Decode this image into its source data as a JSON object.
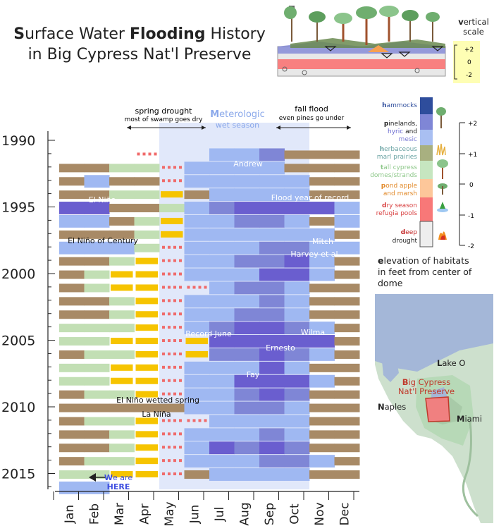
{
  "title": {
    "line1_parts": [
      {
        "text": "S",
        "bold": true
      },
      {
        "text": "urface Water ",
        "bold": false
      },
      {
        "text": "Flooding",
        "bold": true
      },
      {
        "text": " History",
        "bold": false
      }
    ],
    "line2": "in Big Cypress Nat'l Preserve"
  },
  "vertical_scale": {
    "label_bold": "v",
    "label_rest": "ertical",
    "label_line2": "scale",
    "ticks": [
      "+2",
      "0",
      "-2"
    ]
  },
  "annotations": {
    "spring_drought": {
      "title": "spring drought",
      "sub": "most of swamp goes dry"
    },
    "wet_season": {
      "title_bold": "M",
      "title_rest": "eterologic",
      "sub": "wet season"
    },
    "fall_flood": {
      "title": "fall flood",
      "sub": "even pines go under"
    },
    "events": [
      "Andrew",
      "El Niño",
      "Flood year of record",
      "El Niño of Century",
      "Mitch",
      "Harvey et al",
      "Record June",
      "Wilma",
      "Ernesto",
      "Fay",
      "El Niño wetted spring",
      "La Niña"
    ],
    "here_bold": "W",
    "here_rest": "e are",
    "here_line2": "HERE"
  },
  "legend": {
    "categories": [
      {
        "bold": "h",
        "rest": "ammocks",
        "color": "#2e4d9c"
      },
      {
        "bold": "p",
        "rest": "inelands,",
        "color": "#222222"
      },
      {
        "bold": "",
        "rest": "hyric",
        "color": "#6a6ad0"
      },
      {
        "bold": "",
        "rest": "and",
        "color": "#222222"
      },
      {
        "bold": "",
        "rest": "mesic",
        "color": "#7f7fd6"
      },
      {
        "bold": "h",
        "rest": "erbaceous",
        "color": "#6aa3a3"
      },
      {
        "bold": "",
        "rest": "marl prairies",
        "color": "#6aa3a3"
      },
      {
        "bold": "t",
        "rest": "all cypress",
        "color": "#8ec88a"
      },
      {
        "bold": "",
        "rest": "domes/strands",
        "color": "#8ec88a"
      },
      {
        "bold": "p",
        "rest": "ond apple",
        "color": "#e28a2a"
      },
      {
        "bold": "",
        "rest": "and marsh",
        "color": "#e28a2a"
      },
      {
        "bold": "d",
        "rest": "ry season",
        "color": "#d84040"
      },
      {
        "bold": "",
        "rest": "refugia pools",
        "color": "#d84040"
      },
      {
        "bold": "d",
        "rest": "eep",
        "color": "#c02020"
      },
      {
        "bold": "",
        "rest": "drought",
        "color": "#222222"
      }
    ],
    "swatch_colors": [
      "#2e4d9c",
      "#7f86d6",
      "#a9bff2",
      "#a8b080",
      "#c6e6c0",
      "#fdc79a",
      "#f87878",
      "#eeeeee"
    ],
    "scale_ticks": [
      "+2",
      "+1",
      "0",
      "-1",
      "-2"
    ]
  },
  "elevation_caption": {
    "bold": "e",
    "rest_line1": "levation of habitats",
    "line2": "in feet from center of",
    "line3": "dome"
  },
  "map_labels": {
    "lake": {
      "bold": "L",
      "rest": "ake O"
    },
    "preserve": {
      "bold": "B",
      "rest": "ig Cypress",
      "line2": "Nat'l Preserve"
    },
    "naples": {
      "bold": "N",
      "rest": "aples"
    },
    "miami": {
      "bold": "M",
      "rest": "iami"
    }
  },
  "colors": {
    "dry_brown": "#a88a66",
    "marl": "#a8b27a",
    "cypress": "#c2dfb4",
    "pond": "#f6c400",
    "pool": "#f06a6a",
    "wet_light": "#9fb8f2",
    "wet_mid": "#7f86d6",
    "wet_deep": "#6a5ecf",
    "band": "#c8d6f6",
    "accent_blue": "#4a5fe0"
  },
  "chart_data": {
    "type": "heatmap",
    "title": "Surface Water Flooding History in Big Cypress Nat'l Preserve",
    "x_categories": [
      "Jan",
      "Feb",
      "Mar",
      "Apr",
      "May",
      "Jun",
      "Jul",
      "Aug",
      "Sep",
      "Oct",
      "Nov",
      "Dec"
    ],
    "y_ticks": [
      "1990",
      "1995",
      "2000",
      "2005",
      "2010",
      "2015"
    ],
    "years": [
      1990,
      1991,
      1992,
      1993,
      1994,
      1995,
      1996,
      1997,
      1998,
      1999,
      2000,
      2001,
      2002,
      2003,
      2004,
      2005,
      2006,
      2007,
      2008,
      2009,
      2010,
      2011,
      2012,
      2013,
      2014,
      2015,
      2016
    ],
    "value_levels": {
      "6": "hammocks (+2 ft)",
      "5": "pinelands hyric/mesic",
      "4": "pinelands",
      "3": "herbaceous marl prairies (+1 ft)",
      "2": "tall cypress domes/strands (0 ft)",
      "1": "pond apple and marsh",
      "0": "dry season refugia pools (-1 ft)",
      "-1": "deep drought (-2 ft)"
    },
    "value_colors": {
      "6": "#6a5ecf",
      "5": "#7f86d6",
      "4": "#9fb8f2",
      "3": "#a88a66",
      "2": "#c2dfb4",
      "1": "#f6c400",
      "0": "#f06a6a",
      "-1": "#ffffff"
    },
    "grid": [
      [
        -1,
        -1,
        -1,
        -1,
        -1,
        -1,
        -1,
        -1,
        -1,
        -1,
        -1,
        -1
      ],
      [
        -1,
        -1,
        -1,
        0,
        -1,
        -1,
        4,
        4,
        5,
        3,
        3,
        3
      ],
      [
        3,
        3,
        2,
        2,
        0,
        4,
        4,
        4,
        4,
        3,
        3,
        3
      ],
      [
        3,
        4,
        3,
        3,
        0,
        4,
        4,
        4,
        4,
        4,
        3,
        3
      ],
      [
        3,
        3,
        2,
        2,
        1,
        3,
        4,
        4,
        4,
        4,
        3,
        3
      ],
      [
        6,
        6,
        3,
        3,
        2,
        4,
        5,
        6,
        6,
        6,
        6,
        4
      ],
      [
        4,
        4,
        3,
        2,
        1,
        4,
        4,
        5,
        5,
        4,
        3,
        4
      ],
      [
        3,
        3,
        3,
        2,
        1,
        4,
        4,
        4,
        4,
        4,
        4,
        3
      ],
      [
        4,
        4,
        4,
        2,
        0,
        4,
        4,
        4,
        5,
        5,
        4,
        4
      ],
      [
        3,
        3,
        2,
        1,
        0,
        4,
        4,
        5,
        5,
        6,
        4,
        3
      ],
      [
        3,
        2,
        1,
        1,
        0,
        4,
        4,
        4,
        6,
        6,
        4,
        3
      ],
      [
        3,
        2,
        1,
        1,
        0,
        0,
        4,
        5,
        5,
        4,
        3,
        3
      ],
      [
        3,
        3,
        2,
        1,
        0,
        4,
        4,
        4,
        5,
        4,
        3,
        3
      ],
      [
        3,
        3,
        2,
        1,
        0,
        4,
        4,
        5,
        5,
        4,
        3,
        3
      ],
      [
        2,
        2,
        2,
        1,
        0,
        4,
        5,
        6,
        6,
        5,
        4,
        3
      ],
      [
        2,
        2,
        1,
        1,
        0,
        1,
        6,
        6,
        6,
        6,
        6,
        3
      ],
      [
        3,
        2,
        2,
        1,
        0,
        1,
        5,
        5,
        6,
        5,
        4,
        3
      ],
      [
        2,
        2,
        1,
        1,
        0,
        4,
        4,
        4,
        6,
        4,
        3,
        3
      ],
      [
        2,
        2,
        1,
        1,
        0,
        4,
        4,
        6,
        6,
        6,
        4,
        3
      ],
      [
        3,
        2,
        2,
        1,
        0,
        4,
        4,
        5,
        6,
        5,
        3,
        3
      ],
      [
        3,
        3,
        3,
        3,
        3,
        4,
        4,
        5,
        5,
        4,
        3,
        3
      ],
      [
        3,
        2,
        2,
        1,
        0,
        0,
        4,
        4,
        4,
        4,
        3,
        3
      ],
      [
        3,
        3,
        2,
        1,
        0,
        4,
        4,
        4,
        5,
        4,
        3,
        3
      ],
      [
        3,
        3,
        2,
        1,
        0,
        4,
        6,
        5,
        6,
        5,
        3,
        3
      ],
      [
        3,
        2,
        2,
        1,
        0,
        4,
        4,
        4,
        5,
        5,
        4,
        3
      ],
      [
        2,
        2,
        1,
        1,
        0,
        3,
        4,
        4,
        4,
        4,
        3,
        3
      ],
      [
        4,
        4,
        -1,
        -1,
        -1,
        -1,
        -1,
        -1,
        -1,
        -1,
        -1,
        -1
      ]
    ]
  }
}
